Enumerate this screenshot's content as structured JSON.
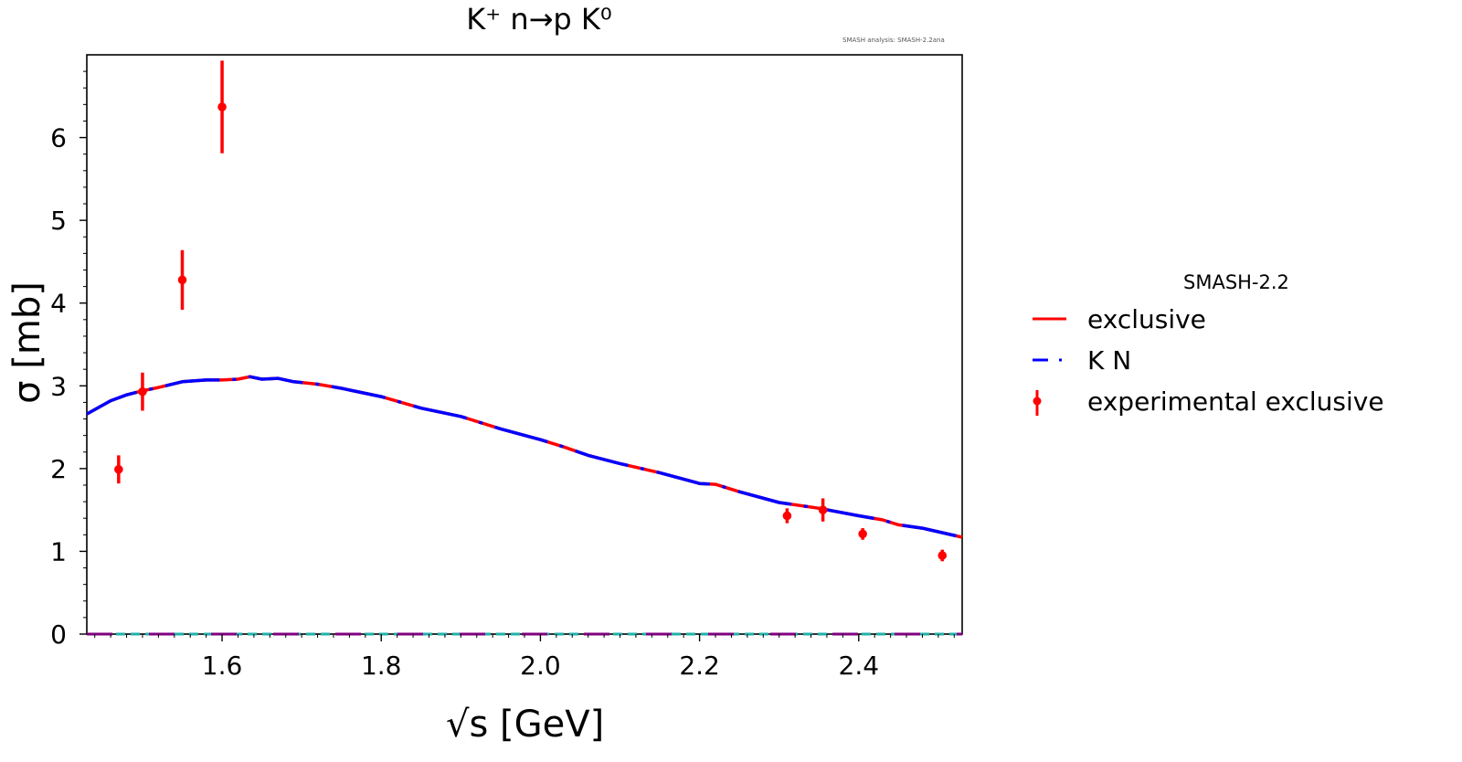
{
  "title": "K⁺ n→p K⁰",
  "analysis_note": "SMASH analysis: SMASH-2.2ana",
  "colors": {
    "exclusive": "#ff0000",
    "kn": "#0000ff",
    "experimental": "#ff0000",
    "mix": "#8a5fbf",
    "baseline_purple": "#800080",
    "baseline_teal": "#20b2aa"
  },
  "legend": {
    "title": "SMASH-2.2",
    "items": [
      {
        "label": "exclusive",
        "style": "solid-line",
        "color": "#ff0000"
      },
      {
        "label": "K N",
        "style": "dashed-line",
        "color": "#0000ff"
      },
      {
        "label": "experimental exclusive",
        "style": "errorbar-point",
        "color": "#ff0000"
      }
    ]
  },
  "chart_data": {
    "type": "line",
    "title": "K⁺ n→p K⁰",
    "xlabel": "√s [GeV]",
    "ylabel": "σ [mb]",
    "xlim": [
      1.43,
      2.53
    ],
    "ylim": [
      0,
      7.0
    ],
    "xticks": [
      1.6,
      1.8,
      2.0,
      2.2,
      2.4
    ],
    "xtick_labels": [
      "1.6",
      "1.8",
      "2.0",
      "2.2",
      "2.4"
    ],
    "yticks": [
      0,
      1,
      2,
      3,
      4,
      5,
      6
    ],
    "ytick_labels": [
      "0",
      "1",
      "2",
      "3",
      "4",
      "5",
      "6"
    ],
    "grid": false,
    "legend_position": "right, outside plot",
    "series": [
      {
        "name": "exclusive",
        "style": "solid",
        "x": [
          1.43,
          1.46,
          1.48,
          1.5,
          1.52,
          1.55,
          1.58,
          1.6,
          1.62,
          1.635,
          1.65,
          1.67,
          1.69,
          1.72,
          1.75,
          1.8,
          1.85,
          1.9,
          1.95,
          2.0,
          2.03,
          2.06,
          2.1,
          2.15,
          2.2,
          2.22,
          2.25,
          2.3,
          2.35,
          2.4,
          2.43,
          2.45,
          2.48,
          2.53
        ],
        "y": [
          2.66,
          2.82,
          2.89,
          2.94,
          2.98,
          3.05,
          3.07,
          3.07,
          3.08,
          3.11,
          3.08,
          3.09,
          3.05,
          3.02,
          2.97,
          2.87,
          2.73,
          2.63,
          2.48,
          2.35,
          2.26,
          2.16,
          2.06,
          1.95,
          1.82,
          1.81,
          1.72,
          1.59,
          1.52,
          1.43,
          1.38,
          1.32,
          1.28,
          1.17
        ]
      },
      {
        "name": "K N",
        "style": "dashed",
        "x": [
          1.43,
          1.46,
          1.48,
          1.5,
          1.52,
          1.55,
          1.58,
          1.6,
          1.62,
          1.635,
          1.65,
          1.67,
          1.69,
          1.72,
          1.75,
          1.8,
          1.85,
          1.9,
          1.95,
          2.0,
          2.03,
          2.06,
          2.1,
          2.15,
          2.2,
          2.22,
          2.25,
          2.3,
          2.35,
          2.4,
          2.43,
          2.45,
          2.48,
          2.53
        ],
        "y": [
          2.66,
          2.82,
          2.89,
          2.94,
          2.98,
          3.05,
          3.07,
          3.07,
          3.08,
          3.11,
          3.08,
          3.09,
          3.05,
          3.02,
          2.97,
          2.87,
          2.73,
          2.63,
          2.48,
          2.35,
          2.26,
          2.16,
          2.06,
          1.95,
          1.82,
          1.81,
          1.72,
          1.59,
          1.52,
          1.43,
          1.38,
          1.32,
          1.28,
          1.17
        ]
      },
      {
        "name": "experimental exclusive",
        "style": "errorbar",
        "points": [
          {
            "x": 1.47,
            "y": 1.99,
            "err": 0.17
          },
          {
            "x": 1.5,
            "y": 2.93,
            "err": 0.23
          },
          {
            "x": 1.55,
            "y": 4.28,
            "err": 0.36
          },
          {
            "x": 1.6,
            "y": 6.37,
            "err": 0.56
          },
          {
            "x": 2.31,
            "y": 1.43,
            "err": 0.09
          },
          {
            "x": 2.355,
            "y": 1.5,
            "err": 0.14
          },
          {
            "x": 2.405,
            "y": 1.21,
            "err": 0.07
          },
          {
            "x": 2.505,
            "y": 0.95,
            "err": 0.07
          }
        ]
      }
    ]
  }
}
